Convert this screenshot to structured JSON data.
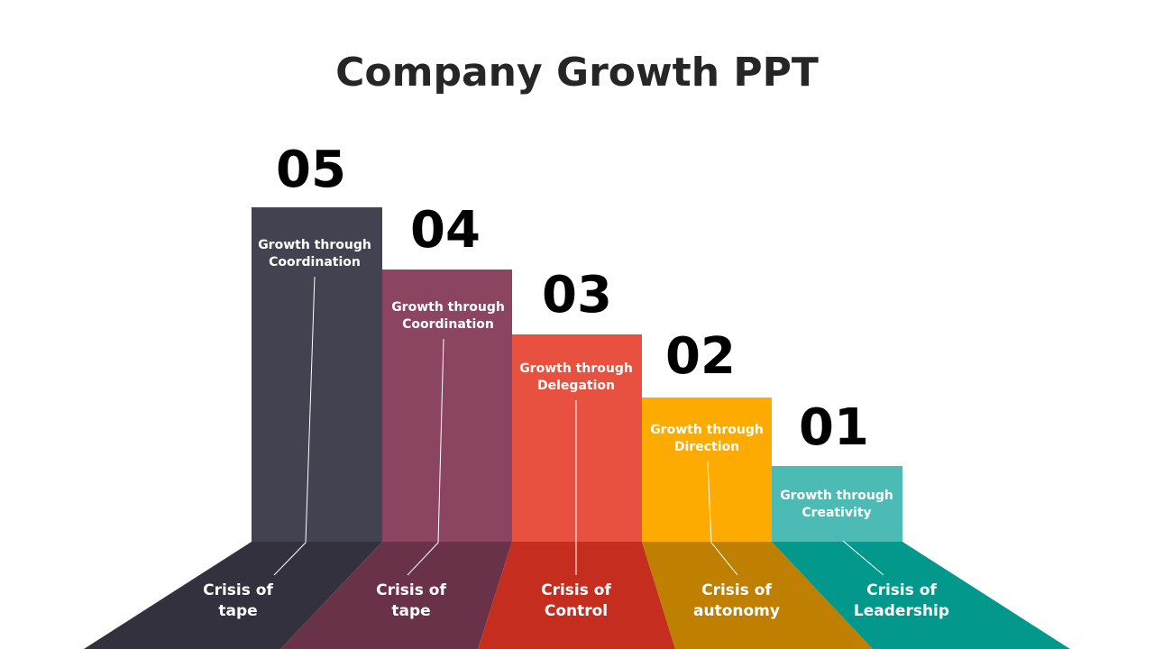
{
  "title": "Company Growth PPT",
  "colors": {
    "s5_bar": "#434250",
    "s5_floor": "#32313d",
    "s4_bar": "#8c4560",
    "s4_floor": "#693249",
    "s3_bar": "#e8503f",
    "s3_floor": "#c52e1e",
    "s2_bar": "#fdaa01",
    "s2_floor": "#bf7f01",
    "s1_bar": "#4cbab5",
    "s1_floor": "#02988c"
  },
  "stages": [
    {
      "number": "05",
      "growth": [
        "Growth through",
        "Coordination"
      ],
      "crisis": [
        "Crisis of",
        "tape"
      ]
    },
    {
      "number": "04",
      "growth": [
        "Growth through",
        "Coordination"
      ],
      "crisis": [
        "Crisis of",
        "tape"
      ]
    },
    {
      "number": "03",
      "growth": [
        "Growth through",
        "Delegation"
      ],
      "crisis": [
        "Crisis of",
        "Control"
      ]
    },
    {
      "number": "02",
      "growth": [
        "Growth through",
        "Direction"
      ],
      "crisis": [
        "Crisis of",
        "autonomy"
      ]
    },
    {
      "number": "01",
      "growth": [
        "Growth through",
        "Creativity"
      ],
      "crisis": [
        "Crisis of",
        "Leadership"
      ]
    }
  ]
}
